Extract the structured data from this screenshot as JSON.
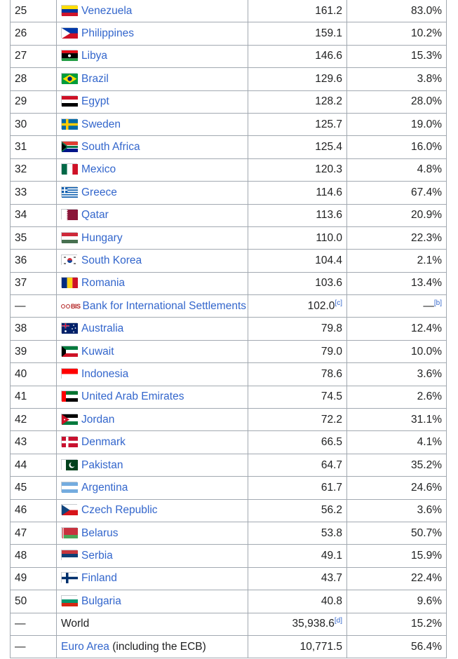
{
  "rows": [
    {
      "rank": "25",
      "name": "Venezuela",
      "reserves": "161.2",
      "pct": "83.0%",
      "flag": "venezuela-flag-icon",
      "colors": [
        "#fcdd09",
        "#0033a0",
        "#cf142b"
      ],
      "style": "h"
    },
    {
      "rank": "26",
      "name": "Philippines",
      "reserves": "159.1",
      "pct": "10.2%",
      "flag": "philippines-flag-icon",
      "colors": [
        "#0038a8",
        "#ce1126",
        "#ffffff"
      ],
      "style": "ph"
    },
    {
      "rank": "27",
      "name": "Libya",
      "reserves": "146.6",
      "pct": "15.3%",
      "flag": "libya-flag-icon",
      "colors": [
        "#e70013",
        "#000000",
        "#239e46"
      ],
      "style": "h4"
    },
    {
      "rank": "28",
      "name": "Brazil",
      "reserves": "129.6",
      "pct": "3.8%",
      "flag": "brazil-flag-icon",
      "colors": [
        "#009c3b",
        "#ffdf00",
        "#002776"
      ],
      "style": "br"
    },
    {
      "rank": "29",
      "name": "Egypt",
      "reserves": "128.2",
      "pct": "28.0%",
      "flag": "egypt-flag-icon",
      "colors": [
        "#ce1126",
        "#ffffff",
        "#000000"
      ],
      "style": "h"
    },
    {
      "rank": "30",
      "name": "Sweden",
      "reserves": "125.7",
      "pct": "19.0%",
      "flag": "sweden-flag-icon",
      "colors": [
        "#006aa7",
        "#fecc00"
      ],
      "style": "nordic"
    },
    {
      "rank": "31",
      "name": "South Africa",
      "reserves": "125.4",
      "pct": "16.0%",
      "flag": "south-africa-flag-icon",
      "colors": [
        "#e03c31",
        "#007749",
        "#001489",
        "#ffb81c",
        "#000000"
      ],
      "style": "za"
    },
    {
      "rank": "32",
      "name": "Mexico",
      "reserves": "120.3",
      "pct": "4.8%",
      "flag": "mexico-flag-icon",
      "colors": [
        "#006847",
        "#ffffff",
        "#ce1126"
      ],
      "style": "v"
    },
    {
      "rank": "33",
      "name": "Greece",
      "reserves": "114.6",
      "pct": "67.4%",
      "flag": "greece-flag-icon",
      "colors": [
        "#0d5eaf",
        "#ffffff"
      ],
      "style": "gr"
    },
    {
      "rank": "34",
      "name": "Qatar",
      "reserves": "113.6",
      "pct": "20.9%",
      "flag": "qatar-flag-icon",
      "colors": [
        "#ffffff",
        "#8a1538"
      ],
      "style": "qa"
    },
    {
      "rank": "35",
      "name": "Hungary",
      "reserves": "110.0",
      "pct": "22.3%",
      "flag": "hungary-flag-icon",
      "colors": [
        "#ce2939",
        "#ffffff",
        "#477050"
      ],
      "style": "h"
    },
    {
      "rank": "36",
      "name": "South Korea",
      "reserves": "104.4",
      "pct": "2.1%",
      "flag": "south-korea-flag-icon",
      "colors": [
        "#ffffff",
        "#cd2e3a",
        "#0047a0"
      ],
      "style": "kr"
    },
    {
      "rank": "37",
      "name": "Romania",
      "reserves": "103.6",
      "pct": "13.4%",
      "flag": "romania-flag-icon",
      "colors": [
        "#002b7f",
        "#fcd116",
        "#ce1126"
      ],
      "style": "v"
    },
    {
      "rank": "—",
      "name": "Bank for International Settlements",
      "reserves": "102.0",
      "reserves_note": "[c]",
      "pct": "—",
      "pct_note": "[b]",
      "flag": "bis-logo-icon",
      "logo_text": "BIS",
      "style": "bis"
    },
    {
      "rank": "38",
      "name": "Australia",
      "reserves": "79.8",
      "pct": "12.4%",
      "flag": "australia-flag-icon",
      "colors": [
        "#012169",
        "#ffffff",
        "#e4002b"
      ],
      "style": "au"
    },
    {
      "rank": "39",
      "name": "Kuwait",
      "reserves": "79.0",
      "pct": "10.0%",
      "flag": "kuwait-flag-icon",
      "colors": [
        "#007a3d",
        "#ffffff",
        "#ce1126",
        "#000000"
      ],
      "style": "kw"
    },
    {
      "rank": "40",
      "name": "Indonesia",
      "reserves": "78.6",
      "pct": "3.6%",
      "flag": "indonesia-flag-icon",
      "colors": [
        "#ff0000",
        "#ffffff"
      ],
      "style": "h2"
    },
    {
      "rank": "41",
      "name": "United Arab Emirates",
      "reserves": "74.5",
      "pct": "2.6%",
      "flag": "uae-flag-icon",
      "colors": [
        "#00732f",
        "#ffffff",
        "#000000",
        "#ff0000"
      ],
      "style": "kw"
    },
    {
      "rank": "42",
      "name": "Jordan",
      "reserves": "72.2",
      "pct": "31.1%",
      "flag": "jordan-flag-icon",
      "colors": [
        "#000000",
        "#ffffff",
        "#007a3d",
        "#ce1126"
      ],
      "style": "kw"
    },
    {
      "rank": "43",
      "name": "Denmark",
      "reserves": "66.5",
      "pct": "4.1%",
      "flag": "denmark-flag-icon",
      "colors": [
        "#c8102e",
        "#ffffff"
      ],
      "style": "nordic"
    },
    {
      "rank": "44",
      "name": "Pakistan",
      "reserves": "64.7",
      "pct": "35.2%",
      "flag": "pakistan-flag-icon",
      "colors": [
        "#ffffff",
        "#01411c"
      ],
      "style": "pk"
    },
    {
      "rank": "45",
      "name": "Argentina",
      "reserves": "61.7",
      "pct": "24.6%",
      "flag": "argentina-flag-icon",
      "colors": [
        "#74acdf",
        "#ffffff",
        "#74acdf"
      ],
      "style": "h"
    },
    {
      "rank": "46",
      "name": "Czech Republic",
      "reserves": "56.2",
      "pct": "3.6%",
      "flag": "czech-flag-icon",
      "colors": [
        "#ffffff",
        "#d7141a",
        "#11457e"
      ],
      "style": "cz"
    },
    {
      "rank": "47",
      "name": "Belarus",
      "reserves": "53.8",
      "pct": "50.7%",
      "flag": "belarus-flag-icon",
      "colors": [
        "#c8313e",
        "#4aa657"
      ],
      "style": "by"
    },
    {
      "rank": "48",
      "name": "Serbia",
      "reserves": "49.1",
      "pct": "15.9%",
      "flag": "serbia-flag-icon",
      "colors": [
        "#c6363c",
        "#0c4076",
        "#ffffff"
      ],
      "style": "h"
    },
    {
      "rank": "49",
      "name": "Finland",
      "reserves": "43.7",
      "pct": "22.4%",
      "flag": "finland-flag-icon",
      "colors": [
        "#ffffff",
        "#002f6c"
      ],
      "style": "nordic"
    },
    {
      "rank": "50",
      "name": "Bulgaria",
      "reserves": "40.8",
      "pct": "9.6%",
      "flag": "bulgaria-flag-icon",
      "colors": [
        "#ffffff",
        "#00966e",
        "#d62612"
      ],
      "style": "h"
    },
    {
      "rank": "—",
      "name": "World",
      "reserves": "35,938.6",
      "reserves_note": "[d]",
      "pct": "15.2%",
      "flag": "",
      "style": "world"
    },
    {
      "rank": "—",
      "name": "Euro Area",
      "name_suffix": " (including the ECB)",
      "reserves": "10,771.5",
      "pct": "56.4%",
      "flag": "",
      "style": "euro"
    }
  ]
}
